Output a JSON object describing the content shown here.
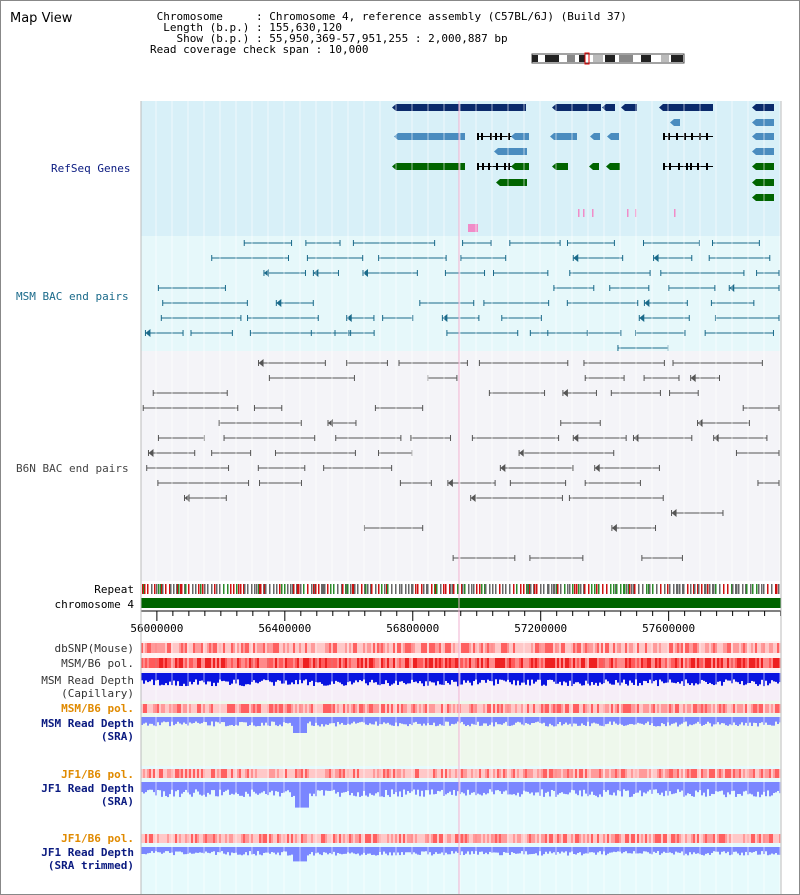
{
  "title": "Map View",
  "info": {
    "rows": [
      " Chromosome     : Chromosome 4, reference assembly (C57BL/6J) (Build 37)",
      "  Length (b.p.) : 155,630,120",
      "    Show (b.p.) : 55,950,369-57,951,255 : 2,000,887 bp",
      "Read coverage check span : 10,000"
    ]
  },
  "tracks": {
    "refseq": "RefSeq Genes",
    "msm_bac": "MSM BAC end pairs",
    "b6n_bac": "B6N BAC end pairs",
    "repeat": "Repeat",
    "chromosome": "chromosome 4",
    "dbsnp": "dbSNP(Mouse)",
    "msm_b6_pol": "MSM/B6 pol.",
    "msm_depth_cap_1": "MSM Read Depth",
    "msm_depth_cap_2": "(Capillary)",
    "msm_b6_pol_2": "MSM/B6 pol.",
    "msm_depth_sra_1": "MSM Read Depth",
    "msm_depth_sra_2": "(SRA)",
    "jf1_b6_pol": "JF1/B6 pol.",
    "jf1_depth_sra_1": "JF1 Read Depth",
    "jf1_depth_sra_2": "(SRA)",
    "jf1_b6_pol_2": "JF1/B6 pol.",
    "jf1_depth_trim_1": "JF1 Read Depth",
    "jf1_depth_trim_2": "(SRA trimmed)"
  },
  "axis": {
    "ticks": [
      "56000000",
      "56400000",
      "56800000",
      "57200000",
      "57600000"
    ]
  },
  "colors": {
    "refseq_bg": "#d8f0f8",
    "msm_bac_bg": "#e6f8fa",
    "b6n_bac_bg": "#f4f4f8",
    "chromosome": "#006400",
    "gene_navy": "#0b2a6b",
    "gene_steel": "#4a8cbf",
    "gene_green": "#006400",
    "msm_line": "#1a6a8a",
    "b6n_line": "#555555",
    "pol_red": "#ee2a2a",
    "depth_dark": "#0a14e0",
    "depth_light": "#7a86ff",
    "label_navy": "#0a1a80",
    "label_teal": "#1a6a8a",
    "label_orange": "#e08a00"
  }
}
